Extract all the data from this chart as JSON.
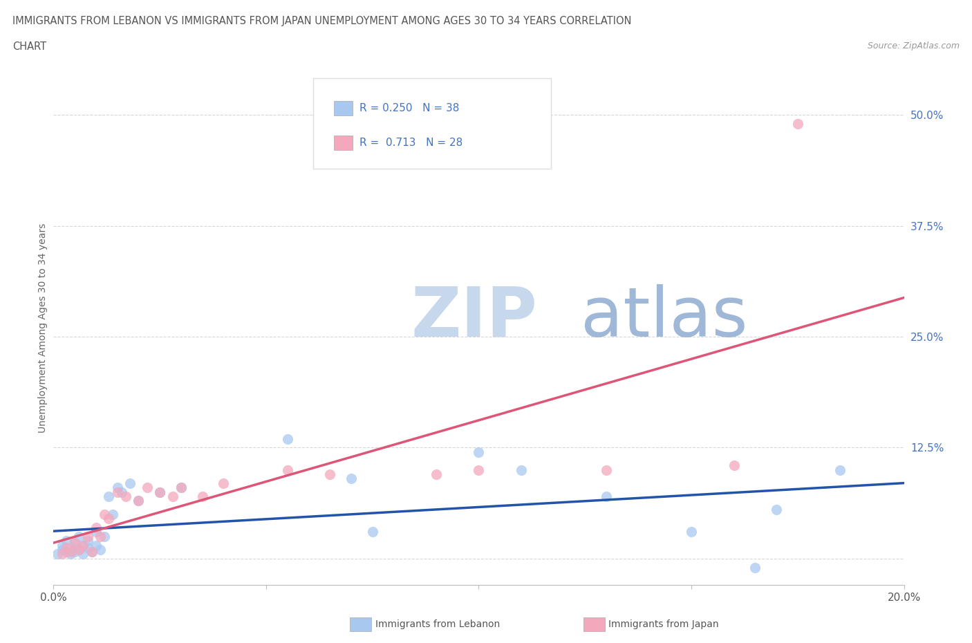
{
  "title_line1": "IMMIGRANTS FROM LEBANON VS IMMIGRANTS FROM JAPAN UNEMPLOYMENT AMONG AGES 30 TO 34 YEARS CORRELATION",
  "title_line2": "CHART",
  "source_text": "Source: ZipAtlas.com",
  "ylabel": "Unemployment Among Ages 30 to 34 years",
  "xlim": [
    0.0,
    0.2
  ],
  "ylim": [
    -0.03,
    0.55
  ],
  "yticks": [
    0.0,
    0.125,
    0.25,
    0.375,
    0.5
  ],
  "ytick_labels": [
    "",
    "12.5%",
    "25.0%",
    "37.5%",
    "50.0%"
  ],
  "xticks": [
    0.0,
    0.05,
    0.1,
    0.15,
    0.2
  ],
  "xtick_labels": [
    "0.0%",
    "",
    "",
    "",
    "20.0%"
  ],
  "lebanon_color": "#a8c8f0",
  "japan_color": "#f4a8bc",
  "line_lebanon_color": "#2255aa",
  "line_japan_color": "#dd5577",
  "legend_R_lebanon": "0.250",
  "legend_N_lebanon": "38",
  "legend_R_japan": "0.713",
  "legend_N_japan": "28",
  "watermark_zip": "ZIP",
  "watermark_atlas": "atlas",
  "watermark_color_zip": "#c8d8ec",
  "watermark_color_atlas": "#a0b8d8",
  "lebanon_x": [
    0.001,
    0.002,
    0.002,
    0.003,
    0.003,
    0.004,
    0.004,
    0.005,
    0.005,
    0.006,
    0.006,
    0.007,
    0.007,
    0.008,
    0.008,
    0.009,
    0.01,
    0.01,
    0.011,
    0.012,
    0.013,
    0.014,
    0.015,
    0.016,
    0.018,
    0.02,
    0.025,
    0.03,
    0.055,
    0.07,
    0.075,
    0.1,
    0.11,
    0.13,
    0.15,
    0.165,
    0.17,
    0.185
  ],
  "lebanon_y": [
    0.005,
    0.01,
    0.015,
    0.008,
    0.02,
    0.005,
    0.012,
    0.018,
    0.008,
    0.025,
    0.01,
    0.015,
    0.005,
    0.02,
    0.012,
    0.008,
    0.03,
    0.015,
    0.01,
    0.025,
    0.07,
    0.05,
    0.08,
    0.075,
    0.085,
    0.065,
    0.075,
    0.08,
    0.135,
    0.09,
    0.03,
    0.12,
    0.1,
    0.07,
    0.03,
    -0.01,
    0.055,
    0.1
  ],
  "japan_x": [
    0.002,
    0.003,
    0.004,
    0.005,
    0.006,
    0.007,
    0.008,
    0.009,
    0.01,
    0.011,
    0.012,
    0.013,
    0.015,
    0.017,
    0.02,
    0.022,
    0.025,
    0.028,
    0.03,
    0.035,
    0.04,
    0.055,
    0.065,
    0.09,
    0.1,
    0.13,
    0.16,
    0.175
  ],
  "japan_y": [
    0.005,
    0.012,
    0.008,
    0.018,
    0.01,
    0.015,
    0.025,
    0.008,
    0.035,
    0.025,
    0.05,
    0.045,
    0.075,
    0.07,
    0.065,
    0.08,
    0.075,
    0.07,
    0.08,
    0.07,
    0.085,
    0.1,
    0.095,
    0.095,
    0.1,
    0.1,
    0.105,
    0.49
  ]
}
